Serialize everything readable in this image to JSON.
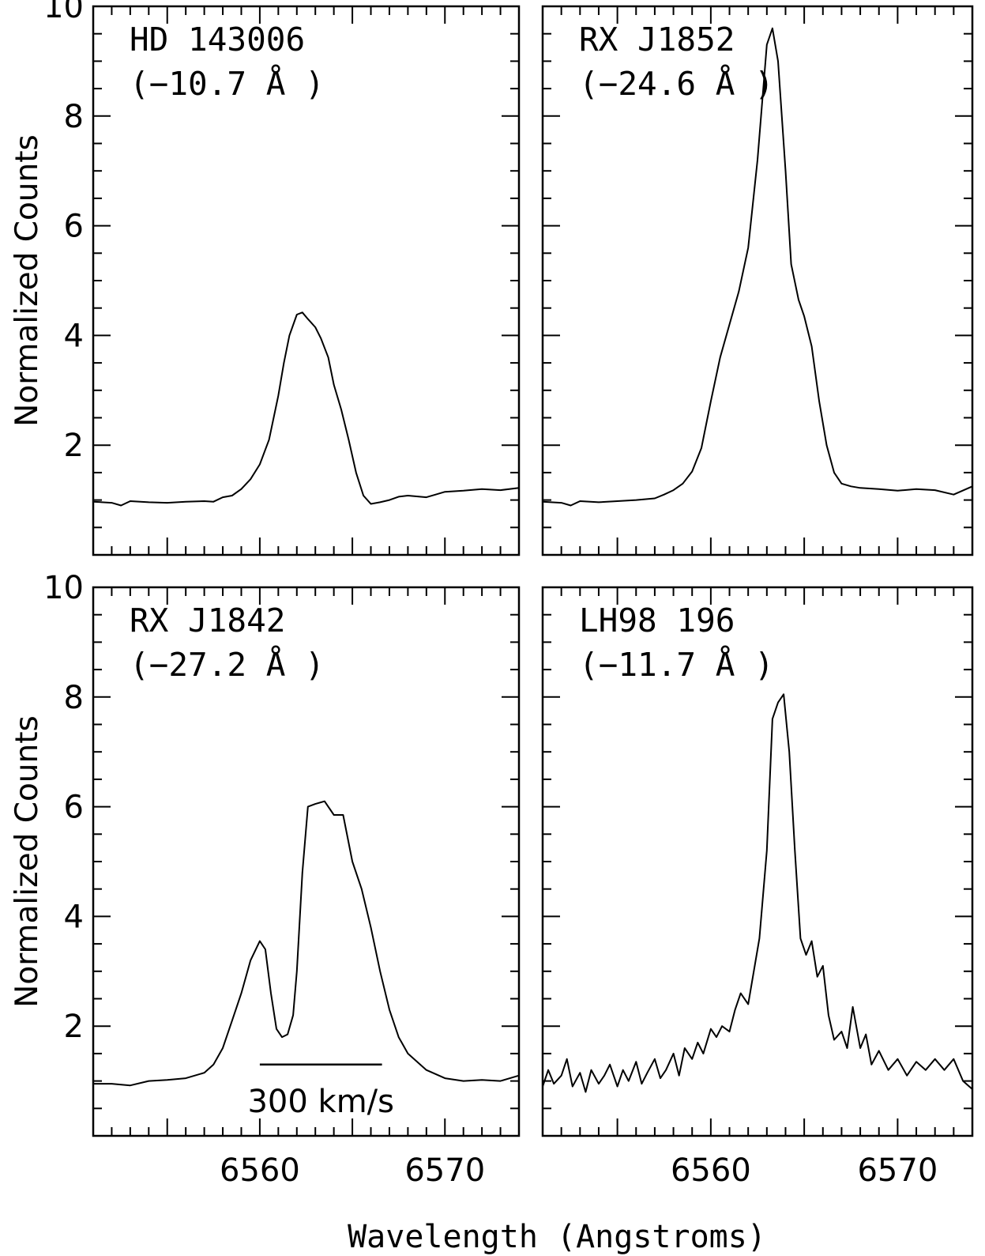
{
  "chart_data": [
    {
      "type": "line",
      "panel": "top-left",
      "label": "HD 143006",
      "eqw": "(−10.7 Å )",
      "xlim": [
        6551,
        6574
      ],
      "ylim": [
        0,
        10
      ],
      "xticks": [],
      "yticks": [
        "2",
        "4",
        "6",
        "8",
        "10"
      ],
      "ylabel": "Normalized Counts",
      "x": [
        6551,
        6552,
        6552.5,
        6553,
        6554,
        6555,
        6556,
        6557,
        6557.5,
        6558,
        6558.5,
        6559,
        6559.5,
        6560,
        6560.5,
        6561,
        6561.3,
        6561.6,
        6562,
        6562.3,
        6562.6,
        6563,
        6563.3,
        6563.7,
        6564,
        6564.4,
        6564.8,
        6565.2,
        6565.6,
        6566,
        6566.5,
        6567,
        6567.5,
        6568,
        6569,
        6569.5,
        6570,
        6571,
        6572,
        6573,
        6574
      ],
      "y": [
        0.97,
        0.95,
        0.9,
        0.98,
        0.96,
        0.95,
        0.97,
        0.98,
        0.97,
        1.05,
        1.08,
        1.2,
        1.38,
        1.65,
        2.1,
        2.9,
        3.5,
        4.0,
        4.38,
        4.42,
        4.3,
        4.15,
        3.95,
        3.6,
        3.1,
        2.65,
        2.1,
        1.5,
        1.08,
        0.93,
        0.96,
        1.0,
        1.06,
        1.08,
        1.05,
        1.1,
        1.15,
        1.17,
        1.2,
        1.18,
        1.22
      ]
    },
    {
      "type": "line",
      "panel": "top-right",
      "label": "RX J1852",
      "eqw": "(−24.6 Å )",
      "xlim": [
        6551,
        6574
      ],
      "ylim": [
        0,
        10
      ],
      "xticks": [],
      "yticks": [],
      "x": [
        6551,
        6552,
        6552.5,
        6553,
        6554,
        6555,
        6556,
        6557,
        6557.5,
        6558,
        6558.5,
        6559,
        6559.5,
        6560,
        6560.5,
        6561,
        6561.5,
        6562,
        6562.5,
        6563,
        6563.3,
        6563.6,
        6564,
        6564.3,
        6564.7,
        6565,
        6565.4,
        6565.8,
        6566.2,
        6566.6,
        6567,
        6567.5,
        6568,
        6569,
        6570,
        6571,
        6572,
        6573,
        6574
      ],
      "y": [
        0.97,
        0.95,
        0.9,
        0.98,
        0.96,
        0.98,
        1.0,
        1.03,
        1.1,
        1.18,
        1.3,
        1.52,
        1.95,
        2.8,
        3.6,
        4.2,
        4.8,
        5.6,
        7.2,
        9.3,
        9.6,
        9.0,
        7.0,
        5.3,
        4.65,
        4.35,
        3.8,
        2.8,
        2.0,
        1.5,
        1.3,
        1.25,
        1.22,
        1.2,
        1.17,
        1.2,
        1.18,
        1.1,
        1.25
      ]
    },
    {
      "type": "line",
      "panel": "bottom-left",
      "label": "RX J1842",
      "eqw": "(−27.2 Å )",
      "xlim": [
        6551,
        6574
      ],
      "ylim": [
        0,
        10
      ],
      "xticks": [
        "6560",
        "6570"
      ],
      "yticks": [
        "2",
        "4",
        "6",
        "8",
        "10"
      ],
      "ylabel": "Normalized Counts",
      "scale_bar": {
        "label": "300 km/s",
        "x1": 6560,
        "x2": 6566.6,
        "y": 1.3
      },
      "x": [
        6551,
        6552,
        6553,
        6554,
        6555,
        6556,
        6557,
        6557.5,
        6558,
        6558.5,
        6559,
        6559.5,
        6560,
        6560.3,
        6560.6,
        6560.9,
        6561.2,
        6561.5,
        6561.8,
        6562,
        6562.3,
        6562.6,
        6563,
        6563.5,
        6564,
        6564.5,
        6565,
        6565.5,
        6566,
        6566.5,
        6567,
        6567.5,
        6568,
        6569,
        6570,
        6571,
        6572,
        6573,
        6574
      ],
      "y": [
        0.95,
        0.95,
        0.92,
        1.0,
        1.02,
        1.05,
        1.15,
        1.3,
        1.6,
        2.1,
        2.6,
        3.2,
        3.55,
        3.4,
        2.6,
        1.95,
        1.8,
        1.85,
        2.2,
        3.0,
        4.8,
        6.0,
        6.05,
        6.1,
        5.85,
        5.85,
        5.0,
        4.5,
        3.8,
        3.0,
        2.3,
        1.8,
        1.5,
        1.2,
        1.05,
        1.0,
        1.02,
        1.0,
        1.1
      ]
    },
    {
      "type": "line",
      "panel": "bottom-right",
      "label": "LH98 196",
      "eqw": "(−11.7 Å )",
      "xlim": [
        6551,
        6574
      ],
      "ylim": [
        0,
        10
      ],
      "xticks": [
        "6560",
        "6570"
      ],
      "yticks": [],
      "x": [
        6551,
        6551.3,
        6551.6,
        6552,
        6552.3,
        6552.6,
        6553,
        6553.3,
        6553.6,
        6554,
        6554.3,
        6554.6,
        6555,
        6555.3,
        6555.6,
        6556,
        6556.3,
        6556.6,
        6557,
        6557.3,
        6557.6,
        6558,
        6558.3,
        6558.6,
        6559,
        6559.3,
        6559.6,
        6560,
        6560.3,
        6560.6,
        6561,
        6561.3,
        6561.6,
        6562,
        6562.3,
        6562.6,
        6563,
        6563.3,
        6563.6,
        6563.9,
        6564.2,
        6564.5,
        6564.8,
        6565.1,
        6565.4,
        6565.7,
        6566,
        6566.3,
        6566.6,
        6567,
        6567.3,
        6567.6,
        6568,
        6568.3,
        6568.6,
        6569,
        6569.5,
        6570,
        6570.5,
        6571,
        6571.5,
        6572,
        6572.5,
        6573,
        6573.5,
        6574
      ],
      "y": [
        0.9,
        1.2,
        0.95,
        1.1,
        1.4,
        0.9,
        1.15,
        0.8,
        1.2,
        0.95,
        1.1,
        1.3,
        0.9,
        1.2,
        1.0,
        1.35,
        0.95,
        1.15,
        1.4,
        1.05,
        1.2,
        1.5,
        1.1,
        1.6,
        1.4,
        1.7,
        1.5,
        1.95,
        1.8,
        2.0,
        1.9,
        2.3,
        2.6,
        2.4,
        3.0,
        3.6,
        5.2,
        7.6,
        7.9,
        8.05,
        7.0,
        5.2,
        3.6,
        3.3,
        3.55,
        2.9,
        3.1,
        2.2,
        1.75,
        1.9,
        1.6,
        2.35,
        1.6,
        1.85,
        1.3,
        1.55,
        1.2,
        1.4,
        1.1,
        1.35,
        1.2,
        1.4,
        1.2,
        1.4,
        1.0,
        0.85
      ]
    }
  ],
  "xlabel": "Wavelength (Angstroms)",
  "colors": {
    "line": "#000000",
    "background": "#ffffff"
  }
}
